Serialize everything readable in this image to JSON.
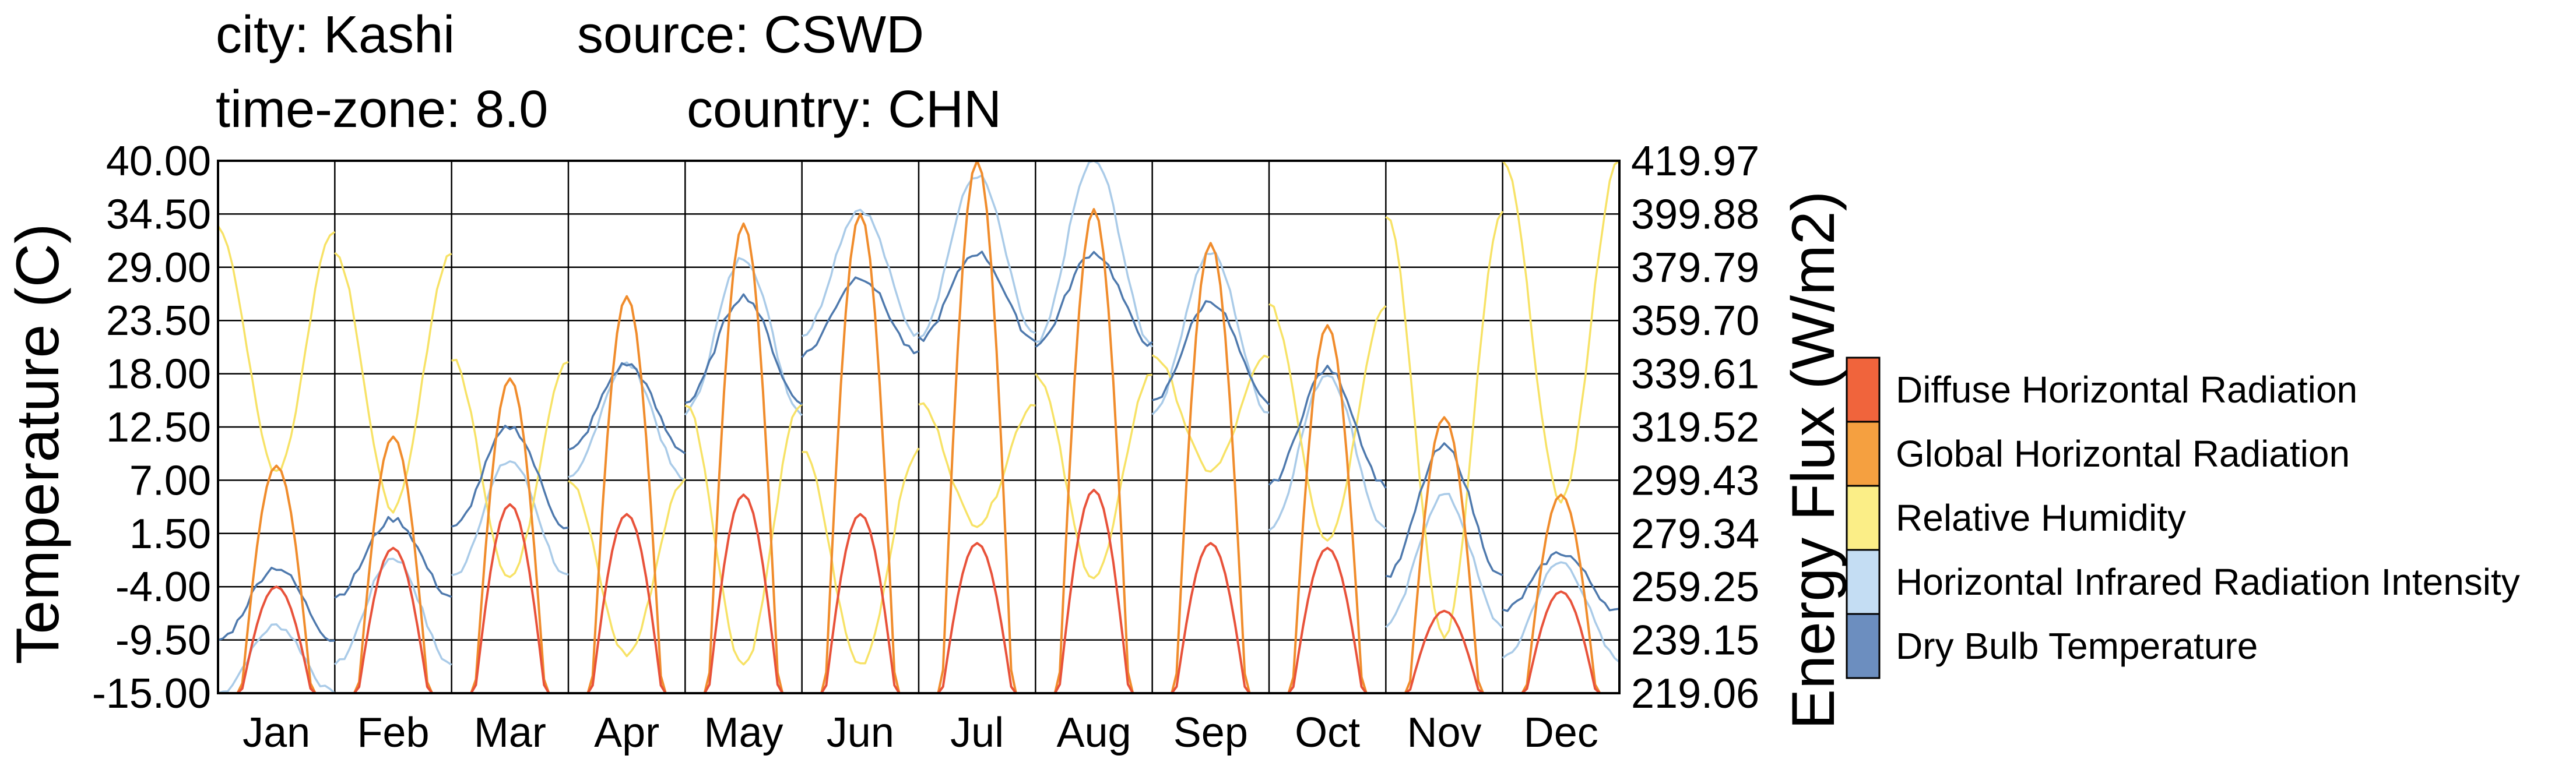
{
  "header": {
    "line1_left": "city: Kashi",
    "line1_right": "source: CSWD",
    "line2_left": "time-zone: 8.0",
    "line2_right": "country: CHN"
  },
  "chart_data": {
    "type": "line",
    "title": "",
    "left_axis": {
      "label": "Temperature (C)",
      "range": [
        -15.0,
        40.0
      ],
      "ticks": [
        "40.00",
        "34.50",
        "29.00",
        "23.50",
        "18.00",
        "12.50",
        "7.00",
        "1.50",
        "-4.00",
        "-9.50",
        "-15.00"
      ]
    },
    "right_axis": {
      "label": "Energy Flux (W/m2)",
      "range": [
        219.06,
        419.97
      ],
      "ticks": [
        "419.97",
        "399.88",
        "379.79",
        "359.70",
        "339.61",
        "319.52",
        "299.43",
        "279.34",
        "259.25",
        "239.15",
        "219.06"
      ]
    },
    "categories": [
      "Jan",
      "Feb",
      "Mar",
      "Apr",
      "May",
      "Jun",
      "Jul",
      "Aug",
      "Sep",
      "Oct",
      "Nov",
      "Dec"
    ],
    "grid": true,
    "legend_position": "right",
    "legend": [
      {
        "name": "Diffuse Horizontal Radiation",
        "color": "#f0643c"
      },
      {
        "name": "Global Horizontal Radiation",
        "color": "#f5a040"
      },
      {
        "name": "Relative Humidity",
        "color": "#fbee87"
      },
      {
        "name": "Horizontal Infrared Radiation Intensity",
        "color": "#c4ddf3"
      },
      {
        "name": "Dry Bulb Temperature",
        "color": "#6c8ebf"
      }
    ],
    "series": [
      {
        "name": "Dry Bulb Temperature",
        "color": "#4e79ad",
        "unit": "C",
        "daily_min": [
          -9.5,
          -5.0,
          2.0,
          10.0,
          15.0,
          20.0,
          21.5,
          21.0,
          15.0,
          6.5,
          -3.0,
          -6.5
        ],
        "daily_max": [
          -2.0,
          3.0,
          12.5,
          19.0,
          26.0,
          28.0,
          30.5,
          30.5,
          25.5,
          18.5,
          10.5,
          -0.5
        ]
      },
      {
        "name": "Horizontal Infrared Radiation Intensity",
        "color": "#aacbe8",
        "unit": "Temperature (C) axis",
        "daily_min": [
          -15.0,
          -12.0,
          -3.0,
          7.0,
          14.0,
          22.0,
          22.0,
          21.0,
          14.0,
          2.0,
          -8.0,
          -11.5
        ],
        "daily_max": [
          -8.0,
          -1.0,
          9.0,
          19.0,
          30.0,
          35.0,
          38.5,
          40.0,
          30.5,
          18.0,
          5.5,
          -1.5
        ]
      },
      {
        "name": "Relative Humidity",
        "color": "#f7e266",
        "unit": "Temperature (C) axis",
        "daily_min": [
          8.0,
          4.0,
          -3.0,
          -11.0,
          -12.0,
          -12.0,
          2.5,
          -3.0,
          8.0,
          1.0,
          -9.0,
          5.0
        ],
        "daily_max": [
          33.0,
          30.5,
          19.5,
          7.0,
          15.0,
          10.0,
          15.0,
          18.0,
          20.0,
          25.0,
          34.5,
          40.0
        ]
      },
      {
        "name": "Global Horizontal Radiation",
        "color": "#f08c2c",
        "unit": "Temperature (C) axis",
        "daily_max": [
          8.5,
          11.5,
          17.5,
          26.0,
          33.5,
          34.5,
          40.0,
          35.0,
          31.5,
          23.0,
          13.5,
          5.5
        ]
      },
      {
        "name": "Diffuse Horizontal Radiation",
        "color": "#e8523a",
        "unit": "Temperature (C) axis",
        "daily_max": [
          -4.0,
          0.0,
          4.5,
          3.5,
          5.5,
          3.5,
          0.5,
          6.0,
          0.5,
          0.0,
          -6.5,
          -4.5
        ]
      }
    ]
  }
}
